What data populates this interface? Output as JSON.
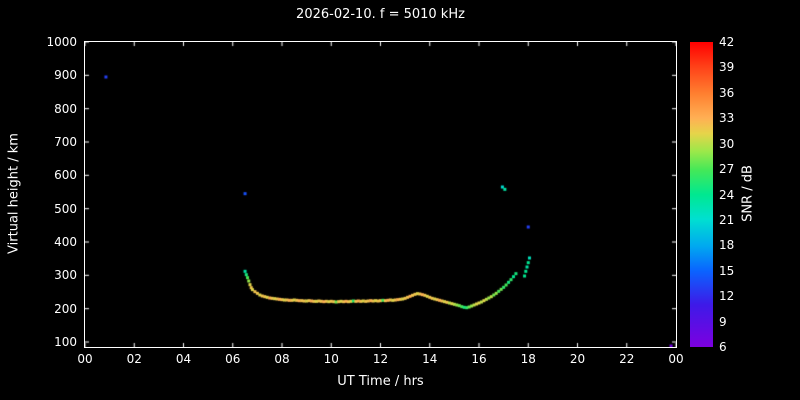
{
  "chart_data": {
    "type": "scatter",
    "title": "2026-02-10. f = 5010 kHz",
    "xlabel": "UT Time / hrs",
    "ylabel": "Virtual height / km",
    "xlim": [
      0,
      24
    ],
    "ylim": [
      85,
      1000
    ],
    "x_tick_values": [
      0,
      2,
      4,
      6,
      8,
      10,
      12,
      14,
      16,
      18,
      20,
      22,
      24
    ],
    "x_tick_labels": [
      "00",
      "02",
      "04",
      "06",
      "08",
      "10",
      "12",
      "14",
      "16",
      "18",
      "20",
      "22",
      "00"
    ],
    "y_tick_values": [
      100,
      200,
      300,
      400,
      500,
      600,
      700,
      800,
      900,
      1000
    ],
    "y_tick_labels": [
      "100",
      "200",
      "300",
      "400",
      "500",
      "600",
      "700",
      "800",
      "900",
      "1000"
    ],
    "grid": false,
    "background": "#000000",
    "text_color": "#ffffff",
    "frame_color": "#ffffff",
    "colorbar": {
      "label": "SNR / dB",
      "min": 6,
      "max": 42,
      "tick_values": [
        6,
        9,
        12,
        15,
        18,
        21,
        24,
        27,
        30,
        33,
        36,
        39,
        42
      ],
      "tick_labels": [
        "6",
        "9",
        "12",
        "15",
        "18",
        "21",
        "24",
        "27",
        "30",
        "33",
        "36",
        "39",
        "42"
      ],
      "stops": [
        [
          0.0,
          "#7d00e0"
        ],
        [
          0.14,
          "#3d1ae8"
        ],
        [
          0.25,
          "#0a64ff"
        ],
        [
          0.33,
          "#00a8f0"
        ],
        [
          0.42,
          "#00e0d0"
        ],
        [
          0.5,
          "#00e890"
        ],
        [
          0.58,
          "#44e858"
        ],
        [
          0.64,
          "#9ae84a"
        ],
        [
          0.7,
          "#e6d44a"
        ],
        [
          0.75,
          "#ffb054"
        ],
        [
          0.83,
          "#ff8030"
        ],
        [
          0.92,
          "#ff4018"
        ],
        [
          1.0,
          "#ff0000"
        ]
      ]
    },
    "points_format": [
      "ut_hours",
      "virtual_height_km",
      "snr_db"
    ],
    "points": [
      [
        0.85,
        895,
        13
      ],
      [
        6.5,
        545,
        14
      ],
      [
        16.95,
        565,
        21
      ],
      [
        17.05,
        558,
        23
      ],
      [
        18.0,
        445,
        13
      ],
      [
        23.8,
        88,
        7
      ],
      [
        6.5,
        312,
        23
      ],
      [
        6.55,
        302,
        25
      ],
      [
        6.6,
        293,
        27
      ],
      [
        6.65,
        283,
        29
      ],
      [
        6.7,
        272,
        31
      ],
      [
        6.75,
        263,
        32
      ],
      [
        6.8,
        257,
        31
      ],
      [
        6.9,
        251,
        32
      ],
      [
        7.0,
        246,
        32
      ],
      [
        7.1,
        241,
        31
      ],
      [
        7.2,
        238,
        32
      ],
      [
        7.3,
        236,
        32
      ],
      [
        7.4,
        234,
        31
      ],
      [
        7.5,
        232,
        33
      ],
      [
        7.6,
        231,
        32
      ],
      [
        7.7,
        230,
        31
      ],
      [
        7.8,
        229,
        32
      ],
      [
        7.9,
        228,
        33
      ],
      [
        8.0,
        227,
        32
      ],
      [
        8.1,
        226,
        31
      ],
      [
        8.2,
        226,
        32
      ],
      [
        8.3,
        225,
        33
      ],
      [
        8.4,
        225,
        32
      ],
      [
        8.5,
        226,
        31
      ],
      [
        8.6,
        225,
        32
      ],
      [
        8.7,
        224,
        33
      ],
      [
        8.8,
        224,
        32
      ],
      [
        8.9,
        223,
        32
      ],
      [
        9.0,
        223,
        31
      ],
      [
        9.1,
        224,
        32
      ],
      [
        9.2,
        223,
        33
      ],
      [
        9.3,
        222,
        32
      ],
      [
        9.4,
        222,
        31
      ],
      [
        9.5,
        223,
        32
      ],
      [
        9.6,
        222,
        32
      ],
      [
        9.7,
        221,
        33
      ],
      [
        9.8,
        222,
        32
      ],
      [
        9.9,
        221,
        31
      ],
      [
        10.0,
        222,
        32
      ],
      [
        10.1,
        221,
        32
      ],
      [
        10.2,
        220,
        28
      ],
      [
        10.3,
        221,
        32
      ],
      [
        10.4,
        222,
        31
      ],
      [
        10.5,
        221,
        32
      ],
      [
        10.6,
        222,
        33
      ],
      [
        10.7,
        221,
        32
      ],
      [
        10.8,
        222,
        31
      ],
      [
        10.9,
        223,
        26
      ],
      [
        11.0,
        222,
        32
      ],
      [
        11.1,
        223,
        33
      ],
      [
        11.2,
        222,
        32
      ],
      [
        11.3,
        223,
        31
      ],
      [
        11.4,
        222,
        32
      ],
      [
        11.5,
        223,
        32
      ],
      [
        11.6,
        224,
        33
      ],
      [
        11.7,
        223,
        32
      ],
      [
        11.8,
        224,
        31
      ],
      [
        11.9,
        223,
        32
      ],
      [
        12.0,
        224,
        32
      ],
      [
        12.1,
        225,
        27
      ],
      [
        12.2,
        224,
        32
      ],
      [
        12.3,
        225,
        33
      ],
      [
        12.4,
        226,
        32
      ],
      [
        12.5,
        225,
        31
      ],
      [
        12.6,
        226,
        32
      ],
      [
        12.7,
        227,
        33
      ],
      [
        12.8,
        228,
        32
      ],
      [
        12.9,
        229,
        31
      ],
      [
        13.0,
        231,
        32
      ],
      [
        13.1,
        234,
        32
      ],
      [
        13.2,
        237,
        33
      ],
      [
        13.3,
        240,
        32
      ],
      [
        13.4,
        243,
        32
      ],
      [
        13.5,
        245,
        31
      ],
      [
        13.6,
        244,
        32
      ],
      [
        13.7,
        242,
        33
      ],
      [
        13.8,
        240,
        32
      ],
      [
        13.9,
        237,
        31
      ],
      [
        14.0,
        234,
        32
      ],
      [
        14.1,
        231,
        32
      ],
      [
        14.2,
        229,
        31
      ],
      [
        14.3,
        227,
        32
      ],
      [
        14.4,
        225,
        33
      ],
      [
        14.5,
        223,
        32
      ],
      [
        14.6,
        221,
        31
      ],
      [
        14.7,
        219,
        32
      ],
      [
        14.8,
        217,
        30
      ],
      [
        14.9,
        215,
        31
      ],
      [
        15.0,
        213,
        30
      ],
      [
        15.1,
        211,
        29
      ],
      [
        15.2,
        209,
        28
      ],
      [
        15.3,
        206,
        27
      ],
      [
        15.4,
        204,
        25
      ],
      [
        15.5,
        203,
        26
      ],
      [
        15.6,
        205,
        28
      ],
      [
        15.7,
        208,
        29
      ],
      [
        15.8,
        211,
        30
      ],
      [
        15.9,
        214,
        31
      ],
      [
        16.0,
        217,
        31
      ],
      [
        16.1,
        220,
        30
      ],
      [
        16.2,
        224,
        31
      ],
      [
        16.3,
        228,
        30
      ],
      [
        16.4,
        232,
        29
      ],
      [
        16.5,
        236,
        30
      ],
      [
        16.6,
        241,
        28
      ],
      [
        16.7,
        246,
        29
      ],
      [
        16.8,
        252,
        27
      ],
      [
        16.9,
        258,
        28
      ],
      [
        17.0,
        264,
        26
      ],
      [
        17.1,
        271,
        27
      ],
      [
        17.2,
        279,
        25
      ],
      [
        17.3,
        287,
        26
      ],
      [
        17.4,
        296,
        24
      ],
      [
        17.5,
        305,
        25
      ],
      [
        17.85,
        298,
        24
      ],
      [
        17.9,
        312,
        24
      ],
      [
        17.95,
        325,
        23
      ],
      [
        18.0,
        338,
        24
      ],
      [
        18.05,
        352,
        22
      ]
    ]
  }
}
